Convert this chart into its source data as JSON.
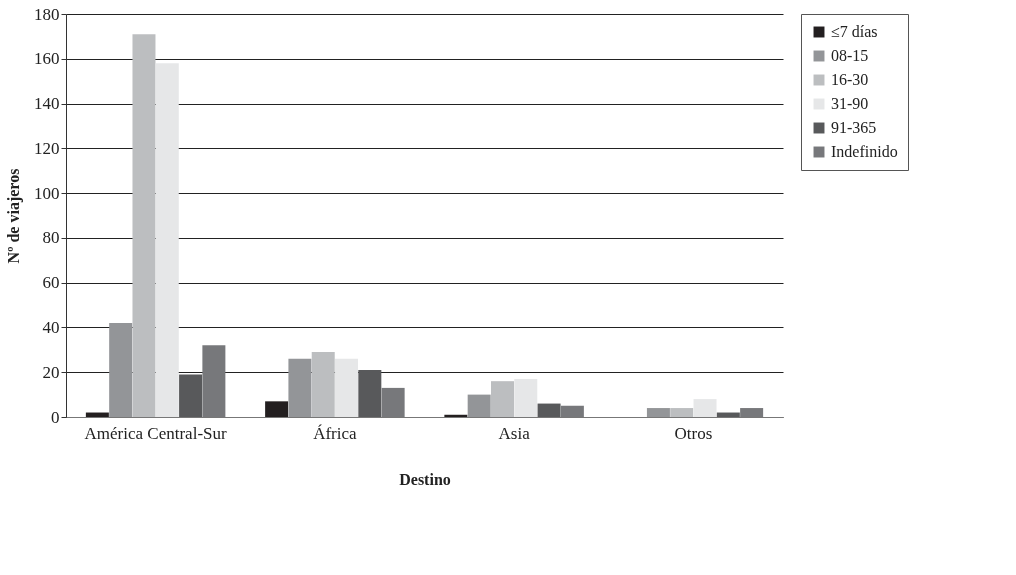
{
  "chart_data": {
    "type": "bar",
    "xlabel": "Destino",
    "ylabel": "Nº de viajeros",
    "categories": [
      "América Central-Sur",
      "África",
      "Asia",
      "Otros"
    ],
    "series": [
      {
        "name": "≤7 días",
        "color": "#231f20",
        "values": [
          2,
          7,
          1,
          0
        ]
      },
      {
        "name": "08-15",
        "color": "#939598",
        "values": [
          42,
          26,
          10,
          4
        ]
      },
      {
        "name": "16-30",
        "color": "#bcbec0",
        "values": [
          171,
          29,
          16,
          4
        ]
      },
      {
        "name": "31-90",
        "color": "#e6e7e8",
        "values": [
          158,
          26,
          17,
          8
        ]
      },
      {
        "name": "91-365",
        "color": "#58595b",
        "values": [
          19,
          21,
          6,
          2
        ]
      },
      {
        "name": "Indefinido",
        "color": "#77787b",
        "values": [
          32,
          13,
          5,
          4
        ]
      }
    ],
    "ylim": [
      0,
      180
    ],
    "yticks": [
      0,
      20,
      40,
      60,
      80,
      100,
      120,
      140,
      160,
      180
    ],
    "grid": "y",
    "legend": "right"
  }
}
